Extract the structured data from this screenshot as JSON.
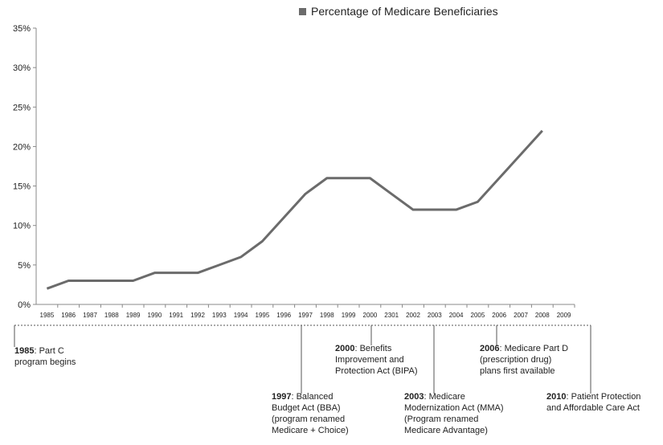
{
  "chart_data": {
    "type": "line",
    "categories": [
      "1985",
      "1986",
      "1987",
      "1988",
      "1989",
      "1990",
      "1991",
      "1992",
      "1993",
      "1994",
      "1995",
      "1996",
      "1997",
      "1998",
      "1999",
      "2000",
      "2301",
      "2002",
      "2003",
      "2004",
      "2005",
      "2006",
      "2007",
      "2008",
      "2009"
    ],
    "series": [
      {
        "name": "Percentage of Medicare Beneficiaries",
        "color": "#6b6b6b",
        "values": [
          2,
          3,
          3,
          3,
          3,
          4,
          4,
          4,
          5,
          6,
          8,
          11,
          14,
          16,
          16,
          16,
          14,
          12,
          12,
          12,
          13,
          16,
          19,
          22,
          null
        ]
      }
    ],
    "ylim": [
      0,
      35
    ],
    "yticks": [
      {
        "value": 0,
        "label": "0%"
      },
      {
        "value": 5,
        "label": "5%"
      },
      {
        "value": 10,
        "label": "10%"
      },
      {
        "value": 15,
        "label": "15%"
      },
      {
        "value": 20,
        "label": "20%"
      },
      {
        "value": 25,
        "label": "25%"
      },
      {
        "value": 30,
        "label": "30%"
      },
      {
        "value": 35,
        "label": "35%"
      }
    ],
    "legend": "top",
    "annotations": [
      {
        "year": "1985",
        "lines": [
          ": Part C",
          "program begins"
        ]
      },
      {
        "year": "2000",
        "lines": [
          ": Benefits",
          "Improvement and",
          "Protection Act (BIPA)"
        ]
      },
      {
        "year": "2006",
        "lines": [
          ": Medicare Part D",
          "(prescription drug)",
          "plans first available"
        ]
      },
      {
        "year": "1997",
        "lines": [
          ": Balanced",
          "Budget Act (BBA)",
          "(program renamed",
          "Medicare + Choice)"
        ]
      },
      {
        "year": "2003",
        "lines": [
          ": Medicare",
          "Modernization Act (MMA)",
          "(Program renamed",
          "Medicare Advantage)"
        ]
      },
      {
        "year": "2010",
        "lines": [
          ": Patient Protection",
          "and Affordable Care Act"
        ]
      }
    ]
  }
}
